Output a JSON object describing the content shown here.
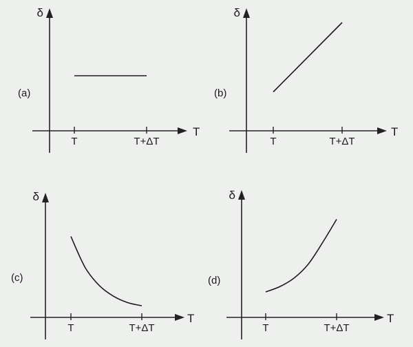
{
  "chart_data": [
    {
      "type": "line",
      "panel_label": "(a)",
      "ylabel": "δ",
      "xlabel": "T",
      "tick_labels": [
        "T",
        "T+ΔT"
      ],
      "series": [
        {
          "x": [
            0,
            1
          ],
          "y": [
            0.6,
            0.6
          ]
        }
      ]
    },
    {
      "type": "line",
      "panel_label": "(b)",
      "ylabel": "δ",
      "xlabel": "T",
      "tick_labels": [
        "T",
        "T+ΔT"
      ],
      "series": [
        {
          "x": [
            0,
            1
          ],
          "y": [
            0.3,
            0.95
          ]
        }
      ]
    },
    {
      "type": "line",
      "panel_label": "(c)",
      "ylabel": "δ",
      "xlabel": "T",
      "tick_labels": [
        "T",
        "T+ΔT"
      ],
      "series": [
        {
          "x": [
            0,
            0.2,
            0.4,
            0.6,
            0.8,
            1
          ],
          "y": [
            0.72,
            0.43,
            0.26,
            0.16,
            0.1,
            0.07
          ]
        }
      ]
    },
    {
      "type": "line",
      "panel_label": "(d)",
      "ylabel": "δ",
      "xlabel": "T",
      "tick_labels": [
        "T",
        "T+ΔT"
      ],
      "series": [
        {
          "x": [
            0,
            0.2,
            0.4,
            0.6,
            0.8,
            1
          ],
          "y": [
            0.2,
            0.25,
            0.33,
            0.46,
            0.66,
            0.88
          ]
        }
      ]
    }
  ]
}
